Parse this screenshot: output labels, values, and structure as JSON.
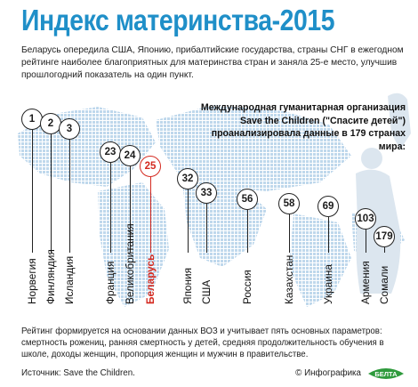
{
  "title": "Индекс материнства-2015",
  "lead": "Беларусь опередила США, Японию, прибалтийские государства, страны СНГ в ежегодном рейтинге наиболее благоприятных для материнства стран и заняла 25-е место, улучшив прошлогодний показатель на один пункт.",
  "org_lines": [
    "Международная гуманитарная организация",
    "Save the Children (\"Спасите детей\")",
    "проанализировала данные в 179 странах мира:"
  ],
  "countries": [
    {
      "rank": "1",
      "name": "Норвегия",
      "highlight": false
    },
    {
      "rank": "2",
      "name": "Финляндия",
      "highlight": false
    },
    {
      "rank": "3",
      "name": "Исландия",
      "highlight": false
    },
    {
      "rank": "23",
      "name": "Франция",
      "highlight": false
    },
    {
      "rank": "24",
      "name": "Великобритания",
      "highlight": false
    },
    {
      "rank": "25",
      "name": "Беларусь",
      "highlight": true
    },
    {
      "rank": "32",
      "name": "Япония",
      "highlight": false
    },
    {
      "rank": "33",
      "name": "США",
      "highlight": false
    },
    {
      "rank": "56",
      "name": "Россия",
      "highlight": false
    },
    {
      "rank": "58",
      "name": "Казахстан",
      "highlight": false
    },
    {
      "rank": "69",
      "name": "Украина",
      "highlight": false
    },
    {
      "rank": "103",
      "name": "Армения",
      "highlight": false
    },
    {
      "rank": "179",
      "name": "Сомали",
      "highlight": false
    }
  ],
  "footnote": "Рейтинг формируется на основании данных ВОЗ и учитывает пять основных параметров: смертность рожениц, ранняя смертность у детей, средняя продолжительность обучения в школе, доходы женщин, пропорция женщин и мужчин в правительстве.",
  "source": "Источник: Save the Children.",
  "credit": "© Инфографика",
  "logo_text": "БЕЛТА",
  "colors": {
    "title": "#1f8fc8",
    "highlight": "#d42a20",
    "map": "#c6dcee"
  }
}
